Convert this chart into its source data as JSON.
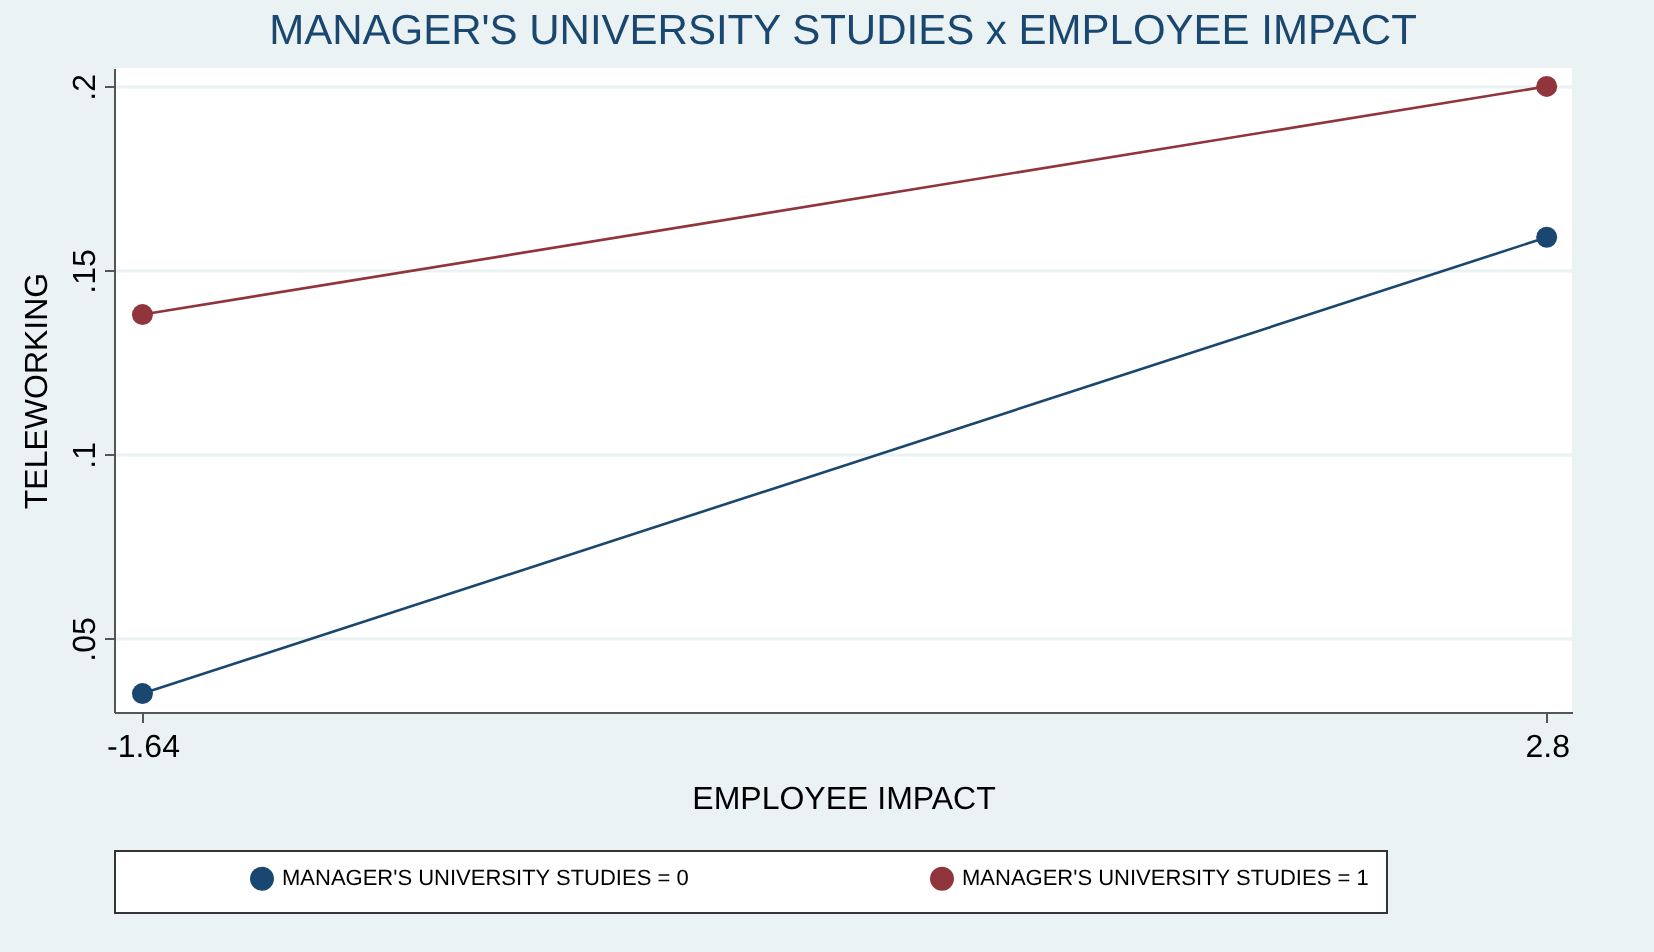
{
  "chart_data": {
    "type": "line",
    "title": "MANAGER'S UNIVERSITY STUDIES x EMPLOYEE IMPACT",
    "xlabel": "EMPLOYEE IMPACT",
    "ylabel": "TELEWORKING",
    "x": [
      -1.64,
      2.8
    ],
    "series": [
      {
        "name": "MANAGER'S UNIVERSITY STUDIES = 0",
        "color": "#1a476f",
        "values": [
          0.035,
          0.159
        ]
      },
      {
        "name": "MANAGER'S UNIVERSITY STUDIES = 1",
        "color": "#90353b",
        "values": [
          0.138,
          0.2
        ]
      }
    ],
    "xlim": [
      -1.73,
      2.88
    ],
    "xticks": [
      -1.64,
      2.8
    ],
    "ylim": [
      0.03,
      0.205
    ],
    "yticks": [
      {
        "value": 0.05,
        "label": ".05"
      },
      {
        "value": 0.1,
        "label": ".1"
      },
      {
        "value": 0.15,
        "label": ".15"
      },
      {
        "value": 0.2,
        "label": ".2"
      }
    ],
    "grid": "y",
    "legend": "bottom",
    "marker": "circle",
    "line_style": "solid"
  }
}
